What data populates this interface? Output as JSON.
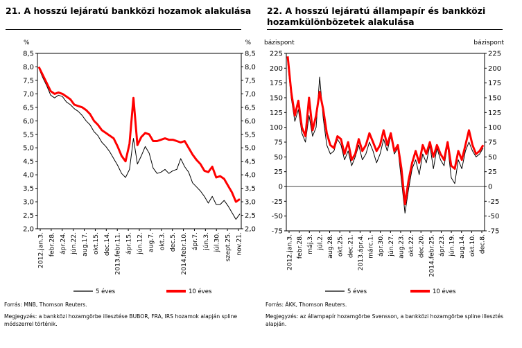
{
  "charts": [
    {
      "title_lines": [
        "21. A hosszú lejáratú bankközi hozamok alakulása"
      ],
      "left_unit": "%",
      "right_unit": "%",
      "source": "Forrás: MNB, Thomson Reuters.",
      "note": "Megjegyzés: a bankközi hozamgörbe illesztése BUBOR, FRA, IRS hozamok alapján spline módszerrel történik."
    },
    {
      "title_lines": [
        "22. A hosszú lejáratú állampapír és bankközi",
        "hozamkülönbözetek alakulása"
      ],
      "left_unit": "bázispont",
      "right_unit": "bázispont",
      "source": "Forrás: ÁKK, Thomson Reuters.",
      "note": "Megjegyzés: az állampapír hozamgörbe Svensson, a bankközi hozamgörbe spline illesztés alapján."
    }
  ],
  "chart_data": [
    {
      "type": "line",
      "y_tick_labels": [
        "8,5",
        "8,0",
        "7,5",
        "7,0",
        "6,5",
        "6,0",
        "5,5",
        "5,0",
        "4,5",
        "4,0",
        "3,5",
        "3,0",
        "2,5",
        "2,0"
      ],
      "ylim": [
        2.0,
        8.5
      ],
      "grid": false,
      "legend_position": "bottom",
      "x_tick_labels": [
        "2012.jan.3.",
        "febr.28.",
        "ápr.24.",
        "jún.22.",
        "aug.17.",
        "okt.15.",
        "dec.14.",
        "2013.febr.11.",
        "ápr.15.",
        "jún.12.",
        "aug.7.",
        "okt.3.",
        "dec.5.",
        "2014.febr.10.",
        "ápr.7.",
        "jún.3.",
        "júl.30.",
        "szept.25.",
        "nov.21."
      ],
      "series": [
        {
          "name": "5 éves",
          "color": "#000000",
          "values": [
            7.95,
            7.6,
            7.3,
            6.95,
            6.85,
            6.95,
            6.9,
            6.7,
            6.6,
            6.45,
            6.35,
            6.2,
            6.0,
            5.85,
            5.6,
            5.45,
            5.2,
            5.05,
            4.85,
            4.6,
            4.35,
            4.05,
            3.9,
            4.2,
            5.35,
            4.4,
            4.7,
            5.05,
            4.8,
            4.25,
            4.05,
            4.1,
            4.2,
            4.05,
            4.15,
            4.2,
            4.6,
            4.3,
            4.1,
            3.7,
            3.55,
            3.4,
            3.2,
            2.95,
            3.2,
            2.9,
            2.9,
            3.05,
            2.85,
            2.6,
            2.35,
            2.55
          ]
        },
        {
          "name": "10 éves",
          "color": "#ff0000",
          "values": [
            8.0,
            7.7,
            7.4,
            7.1,
            7.0,
            7.05,
            7.0,
            6.9,
            6.8,
            6.6,
            6.55,
            6.5,
            6.4,
            6.25,
            6.0,
            5.85,
            5.65,
            5.55,
            5.45,
            5.35,
            5.05,
            4.7,
            4.5,
            5.15,
            6.85,
            5.1,
            5.4,
            5.55,
            5.5,
            5.25,
            5.25,
            5.3,
            5.35,
            5.3,
            5.3,
            5.25,
            5.2,
            5.25,
            5.0,
            4.75,
            4.55,
            4.4,
            4.15,
            4.1,
            4.3,
            3.9,
            3.95,
            3.85,
            3.6,
            3.35,
            3.0,
            3.1
          ]
        }
      ]
    },
    {
      "type": "line",
      "y_tick_labels": [
        "225",
        "200",
        "175",
        "150",
        "125",
        "100",
        "75",
        "50",
        "25",
        "0",
        "-25",
        "-50",
        "-75"
      ],
      "ylim": [
        -75,
        225
      ],
      "grid": false,
      "legend_position": "bottom",
      "x_tick_labels": [
        "2012.jan.3.",
        "febr.28.",
        "máj.3.",
        "júl.2.",
        "aug.28.",
        "okt.25.",
        "dec.21.",
        "2013.ápr.4.",
        "márc.1.",
        "ápr.30.",
        "jún.27.",
        "aug.23.",
        "okt.22.",
        "dec.20.",
        "2014.febr.25.",
        "ápr.23.",
        "jún.19.",
        "aug.14.",
        "okt.10.",
        "dec.8."
      ],
      "series": [
        {
          "name": "5 éves",
          "color": "#000000",
          "values": [
            210,
            150,
            110,
            130,
            90,
            75,
            120,
            85,
            100,
            185,
            115,
            70,
            55,
            60,
            80,
            70,
            45,
            60,
            35,
            50,
            70,
            45,
            55,
            75,
            60,
            40,
            55,
            80,
            60,
            85,
            55,
            65,
            10,
            -45,
            -5,
            30,
            45,
            20,
            55,
            40,
            70,
            30,
            65,
            45,
            35,
            70,
            15,
            5,
            45,
            30,
            60,
            75,
            60,
            50,
            55,
            65
          ]
        },
        {
          "name": "10 éves",
          "color": "#ff0000",
          "values": [
            220,
            160,
            120,
            145,
            100,
            85,
            150,
            95,
            120,
            160,
            130,
            90,
            70,
            65,
            85,
            80,
            55,
            75,
            45,
            55,
            80,
            60,
            70,
            90,
            75,
            60,
            70,
            95,
            70,
            90,
            60,
            70,
            30,
            -30,
            10,
            40,
            60,
            40,
            70,
            55,
            75,
            50,
            70,
            55,
            45,
            75,
            35,
            30,
            60,
            45,
            70,
            95,
            70,
            55,
            60,
            70
          ]
        }
      ]
    }
  ]
}
